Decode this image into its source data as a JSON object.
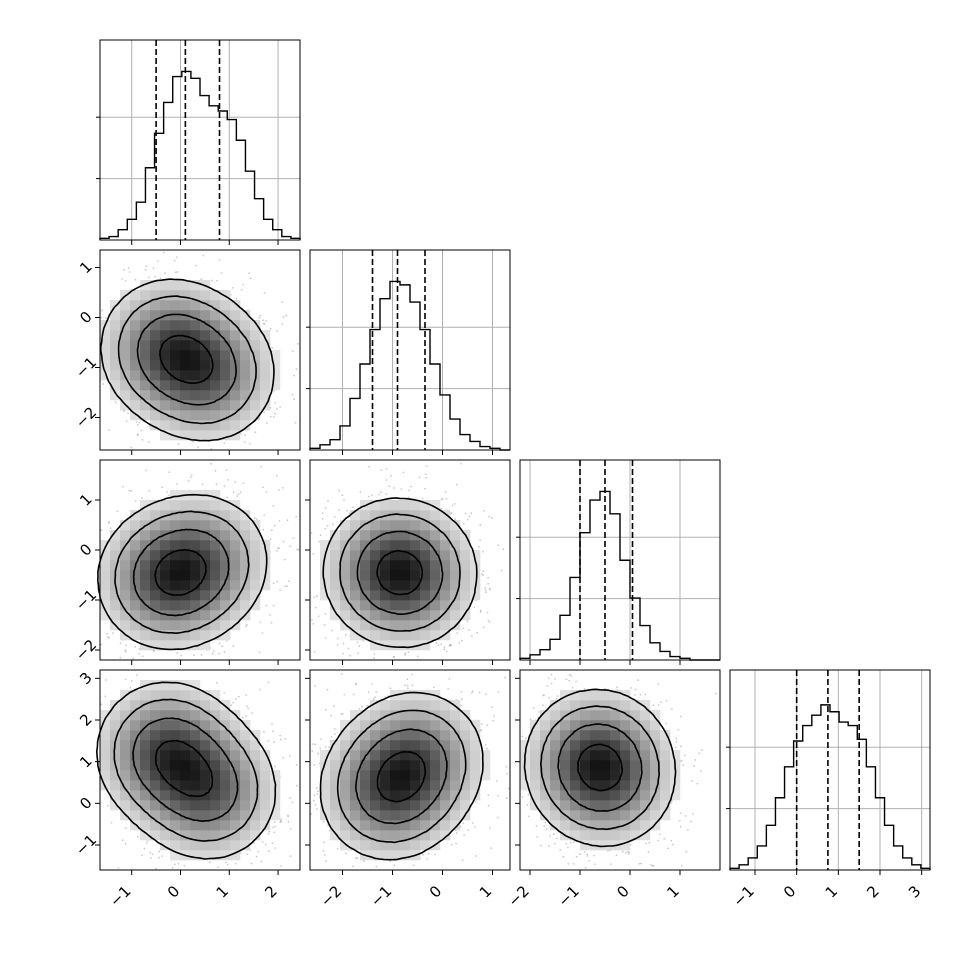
{
  "chart_data": {
    "type": "corner",
    "title": "",
    "ndim": 4,
    "axis_labels": [
      "",
      "",
      "",
      ""
    ],
    "ranges": [
      [
        -1.65,
        2.45
      ],
      [
        -2.65,
        1.35
      ],
      [
        -2.2,
        1.8
      ],
      [
        -1.6,
        3.2
      ]
    ],
    "ticks": [
      [
        -1,
        0,
        1,
        2
      ],
      [
        -2,
        -1,
        0,
        1
      ],
      [
        -2,
        -1,
        0,
        1
      ],
      [
        -1,
        0,
        1,
        2,
        3
      ]
    ],
    "tick_labels": [
      [
        "−1",
        "0",
        "1",
        "2"
      ],
      [
        "−2",
        "−1",
        "0",
        "1"
      ],
      [
        "−2",
        "−1",
        "0",
        "1"
      ],
      [
        "−1",
        "0",
        "1",
        "2",
        "3"
      ]
    ],
    "quantiles": [
      [
        -0.5,
        0.1,
        0.8
      ],
      [
        -1.4,
        -0.9,
        -0.35
      ],
      [
        -1.0,
        -0.5,
        0.05
      ],
      [
        0.0,
        0.75,
        1.5
      ]
    ],
    "histograms": [
      {
        "edges_range": [
          -1.65,
          2.45
        ],
        "counts": [
          0.01,
          0.02,
          0.06,
          0.12,
          0.22,
          0.42,
          0.62,
          0.8,
          0.95,
          0.98,
          0.94,
          0.84,
          0.78,
          0.75,
          0.7,
          0.58,
          0.4,
          0.24,
          0.12,
          0.06,
          0.02,
          0.01
        ]
      },
      {
        "edges_range": [
          -2.65,
          1.35
        ],
        "counts": [
          0.01,
          0.03,
          0.06,
          0.14,
          0.3,
          0.5,
          0.7,
          0.88,
          0.98,
          0.96,
          0.86,
          0.7,
          0.5,
          0.32,
          0.18,
          0.09,
          0.05,
          0.02,
          0.01,
          0.0
        ]
      },
      {
        "edges_range": [
          -2.2,
          1.8
        ],
        "counts": [
          0.01,
          0.03,
          0.06,
          0.12,
          0.26,
          0.48,
          0.74,
          0.93,
          0.98,
          0.85,
          0.58,
          0.36,
          0.2,
          0.1,
          0.05,
          0.02,
          0.01,
          0.0,
          0.0,
          0.0
        ]
      },
      {
        "edges_range": [
          -1.6,
          3.2
        ],
        "counts": [
          0.01,
          0.03,
          0.07,
          0.14,
          0.26,
          0.42,
          0.6,
          0.75,
          0.84,
          0.9,
          0.96,
          0.92,
          0.86,
          0.84,
          0.76,
          0.6,
          0.42,
          0.26,
          0.14,
          0.07,
          0.03,
          0.01
        ]
      }
    ],
    "pair_modes": [
      {
        "row": 1,
        "col": 0,
        "modes": [
          {
            "x": -0.25,
            "y": -0.6,
            "w": 1.0
          },
          {
            "x": 0.6,
            "y": -1.15,
            "w": 0.85
          }
        ]
      },
      {
        "row": 2,
        "col": 0,
        "modes": [
          {
            "x": -0.3,
            "y": -0.6,
            "w": 1.0
          },
          {
            "x": 0.5,
            "y": -0.2,
            "w": 0.7
          }
        ]
      },
      {
        "row": 2,
        "col": 1,
        "modes": [
          {
            "x": -1.0,
            "y": -0.4,
            "w": 1.0
          },
          {
            "x": -0.6,
            "y": -0.55,
            "w": 0.6
          }
        ]
      },
      {
        "row": 3,
        "col": 0,
        "modes": [
          {
            "x": -0.3,
            "y": 1.25,
            "w": 1.0
          },
          {
            "x": 0.6,
            "y": 0.25,
            "w": 0.85
          }
        ]
      },
      {
        "row": 3,
        "col": 1,
        "modes": [
          {
            "x": -1.1,
            "y": 0.25,
            "w": 1.0
          },
          {
            "x": -0.5,
            "y": 1.1,
            "w": 0.9
          }
        ]
      },
      {
        "row": 3,
        "col": 2,
        "modes": [
          {
            "x": -0.7,
            "y": 1.1,
            "w": 1.0
          },
          {
            "x": -0.45,
            "y": 0.5,
            "w": 0.7
          }
        ]
      }
    ],
    "grid": true,
    "legend": "none"
  }
}
